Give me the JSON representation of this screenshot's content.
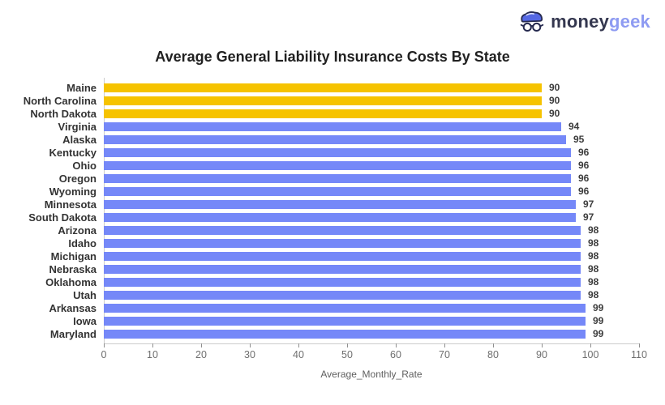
{
  "logo": {
    "brand_primary": "money",
    "brand_secondary": "geek",
    "primary_color": "#34374F",
    "secondary_color": "#8E9BF2",
    "icon": "geek-face-icon",
    "icon_hair_color": "#5568E4",
    "icon_outline_color": "#262A4F"
  },
  "chart_data": {
    "type": "bar",
    "orientation": "horizontal",
    "title": "Average General Liability Insurance Costs By State",
    "xlabel": "Average_Monthly_Rate",
    "ylabel": "",
    "categories": [
      "Maine",
      "North Carolina",
      "North Dakota",
      "Virginia",
      "Alaska",
      "Kentucky",
      "Ohio",
      "Oregon",
      "Wyoming",
      "Minnesota",
      "South Dakota",
      "Arizona",
      "Idaho",
      "Michigan",
      "Nebraska",
      "Oklahoma",
      "Utah",
      "Arkansas",
      "Iowa",
      "Maryland"
    ],
    "values": [
      90,
      90,
      90,
      94,
      95,
      96,
      96,
      96,
      96,
      97,
      97,
      98,
      98,
      98,
      98,
      98,
      98,
      99,
      99,
      99
    ],
    "highlighted_categories": [
      "Maine",
      "North Carolina",
      "North Dakota"
    ],
    "bar_color": "#7588F8",
    "highlight_color": "#F6C300",
    "xlim": [
      0,
      110
    ],
    "xticks": [
      0,
      10,
      20,
      30,
      40,
      50,
      60,
      70,
      80,
      90,
      100,
      110
    ],
    "grid": false,
    "legend": "none",
    "value_labels": true
  }
}
